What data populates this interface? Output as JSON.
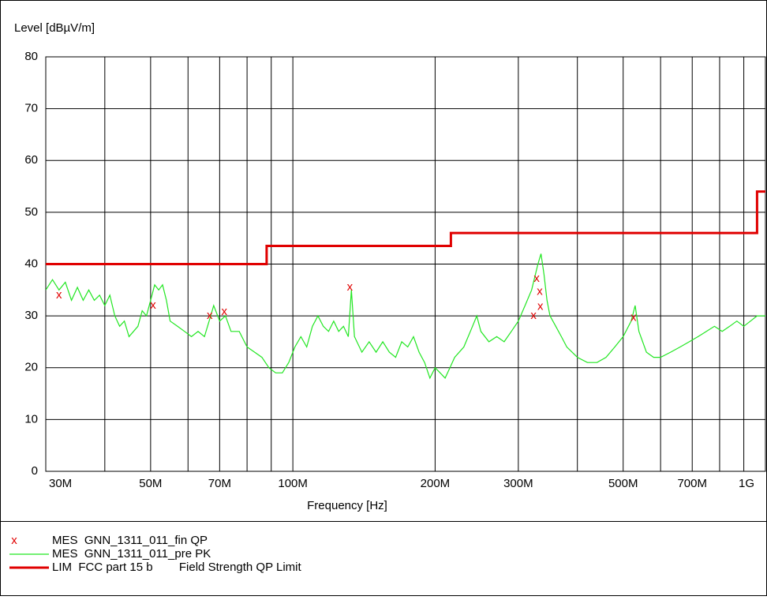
{
  "chart_data": {
    "type": "line",
    "title": "Level [dBµV/m]",
    "xlabel": "Frequency [Hz]",
    "xscale": "log",
    "xlim": [
      30000000.0,
      1000000000.0
    ],
    "ylim": [
      0,
      80
    ],
    "yticks": [
      0,
      10,
      20,
      30,
      40,
      50,
      60,
      70,
      80
    ],
    "xticks": [
      {
        "value": 30000000.0,
        "label": "30M"
      },
      {
        "value": 50000000.0,
        "label": "50M"
      },
      {
        "value": 70000000.0,
        "label": "70M"
      },
      {
        "value": 100000000.0,
        "label": "100M"
      },
      {
        "value": 200000000.0,
        "label": "200M"
      },
      {
        "value": 300000000.0,
        "label": "300M"
      },
      {
        "value": 500000000.0,
        "label": "500M"
      },
      {
        "value": 700000000.0,
        "label": "700M"
      },
      {
        "value": 1000000000.0,
        "label": "1G"
      }
    ],
    "xgrid": [
      40000000.0,
      60000000.0,
      80000000.0,
      90000000.0,
      400000000.0,
      600000000.0,
      800000000.0,
      900000000.0
    ],
    "grid": true,
    "series": [
      {
        "name": "MES  GNN_1311_011_fin QP",
        "color": "#e00000",
        "marker": "x",
        "x": [
          32000000.0,
          50600000.0,
          66700000.0,
          71600000.0,
          132000000.0,
          323000000.0,
          328000000.0,
          333000000.0,
          334000000.0,
          526000000.0
        ],
        "values": [
          34,
          32,
          30,
          30.8,
          35.5,
          30,
          37.2,
          34.7,
          31.8,
          29.6
        ]
      },
      {
        "name": "MES  GNN_1311_011_pre PK",
        "color": "#22e622",
        "x": [
          30000000.0,
          31000000.0,
          32000000.0,
          33000000.0,
          34000000.0,
          35000000.0,
          36000000.0,
          37000000.0,
          38000000.0,
          39000000.0,
          40000000.0,
          41000000.0,
          42000000.0,
          43000000.0,
          44000000.0,
          45000000.0,
          46000000.0,
          47000000.0,
          48000000.0,
          49000000.0,
          50000000.0,
          51000000.0,
          52000000.0,
          53000000.0,
          54000000.0,
          55000000.0,
          57000000.0,
          59000000.0,
          61000000.0,
          63000000.0,
          65000000.0,
          67000000.0,
          68000000.0,
          70000000.0,
          72000000.0,
          74000000.0,
          77000000.0,
          80000000.0,
          83000000.0,
          86000000.0,
          89000000.0,
          92000000.0,
          95000000.0,
          98000000.0,
          101000000.0,
          104000000.0,
          107000000.0,
          110000000.0,
          113000000.0,
          116000000.0,
          119000000.0,
          122000000.0,
          125000000.0,
          128000000.0,
          131000000.0,
          133000000.0,
          135000000.0,
          140000000.0,
          145000000.0,
          150000000.0,
          155000000.0,
          160000000.0,
          165000000.0,
          170000000.0,
          175000000.0,
          180000000.0,
          185000000.0,
          190000000.0,
          195000000.0,
          200000000.0,
          205000000.0,
          210000000.0,
          215000000.0,
          220000000.0,
          230000000.0,
          240000000.0,
          245000000.0,
          250000000.0,
          260000000.0,
          270000000.0,
          280000000.0,
          290000000.0,
          300000000.0,
          310000000.0,
          320000000.0,
          330000000.0,
          335000000.0,
          340000000.0,
          345000000.0,
          350000000.0,
          360000000.0,
          370000000.0,
          380000000.0,
          400000000.0,
          420000000.0,
          440000000.0,
          460000000.0,
          480000000.0,
          500000000.0,
          520000000.0,
          530000000.0,
          540000000.0,
          560000000.0,
          580000000.0,
          600000000.0,
          630000000.0,
          660000000.0,
          690000000.0,
          720000000.0,
          750000000.0,
          780000000.0,
          810000000.0,
          840000000.0,
          870000000.0,
          900000000.0,
          930000000.0,
          960000000.0,
          1000000000.0
        ],
        "values": [
          35,
          37,
          35,
          36.5,
          33,
          35.5,
          33,
          35,
          33,
          34,
          32,
          34,
          30,
          28,
          29,
          26,
          27,
          28,
          31,
          30,
          33,
          36,
          35,
          36,
          33,
          29,
          28,
          27,
          26,
          27,
          26,
          30,
          32,
          29,
          30,
          27,
          27,
          24,
          23,
          22,
          20,
          19,
          19,
          21,
          24,
          26,
          24,
          28,
          30,
          28,
          27,
          29,
          27,
          28,
          26,
          35,
          26,
          23,
          25,
          23,
          25,
          23,
          22,
          25,
          24,
          26,
          23,
          21,
          18,
          20,
          19,
          18,
          20,
          22,
          24,
          28,
          30,
          27,
          25,
          26,
          25,
          27,
          29,
          32,
          35,
          40,
          42,
          38,
          33,
          30,
          28,
          26,
          24,
          22,
          21,
          21,
          22,
          24,
          26,
          29,
          32,
          27,
          23,
          22,
          22,
          23,
          24,
          25,
          26,
          27,
          28,
          27,
          28,
          29,
          28,
          29,
          30,
          30
        ]
      },
      {
        "name": "LIM  FCC part 15 b        Field Strength QP Limit",
        "color": "#e00000",
        "x": [
          30000000.0,
          88000000.0,
          88000000.0,
          216000000.0,
          216000000.0,
          960000000.0,
          960000000.0,
          1000000000.0
        ],
        "values": [
          40,
          40,
          43.5,
          43.5,
          46,
          46,
          54,
          54
        ]
      }
    ]
  }
}
